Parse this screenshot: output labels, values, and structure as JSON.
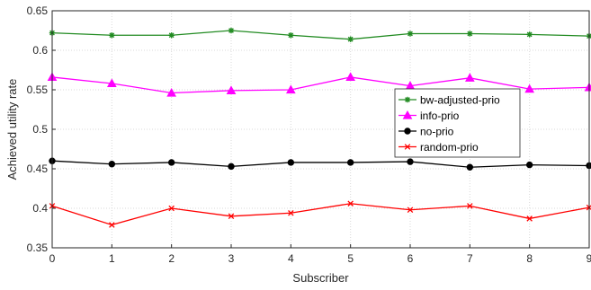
{
  "chart_data": {
    "type": "line",
    "xlabel": "Subscriber",
    "ylabel": "Achieved utility rate",
    "xlim": [
      0,
      9
    ],
    "ylim": [
      0.35,
      0.65
    ],
    "x": [
      0,
      1,
      2,
      3,
      4,
      5,
      6,
      7,
      8,
      9
    ],
    "x_ticks": [
      "0",
      "1",
      "2",
      "3",
      "4",
      "5",
      "6",
      "7",
      "8",
      "9"
    ],
    "y_ticks": [
      "0.35",
      "0.4",
      "0.45",
      "0.5",
      "0.55",
      "0.6",
      "0.65"
    ],
    "grid": true,
    "legend_position": "right, center",
    "series": [
      {
        "name": "bw-adjusted-prio",
        "color": "#228B22",
        "marker": "star",
        "values": [
          0.622,
          0.619,
          0.619,
          0.625,
          0.619,
          0.614,
          0.621,
          0.621,
          0.62,
          0.618
        ]
      },
      {
        "name": "info-prio",
        "color": "#FF00FF",
        "marker": "triangle",
        "values": [
          0.566,
          0.558,
          0.546,
          0.549,
          0.55,
          0.566,
          0.555,
          0.565,
          0.551,
          0.553
        ]
      },
      {
        "name": "no-prio",
        "color": "#000000",
        "marker": "circle",
        "values": [
          0.46,
          0.456,
          0.458,
          0.453,
          0.458,
          0.458,
          0.459,
          0.452,
          0.455,
          0.454
        ]
      },
      {
        "name": "random-prio",
        "color": "#FF0000",
        "marker": "x",
        "values": [
          0.403,
          0.379,
          0.4,
          0.39,
          0.394,
          0.406,
          0.398,
          0.403,
          0.387,
          0.401
        ]
      }
    ]
  }
}
